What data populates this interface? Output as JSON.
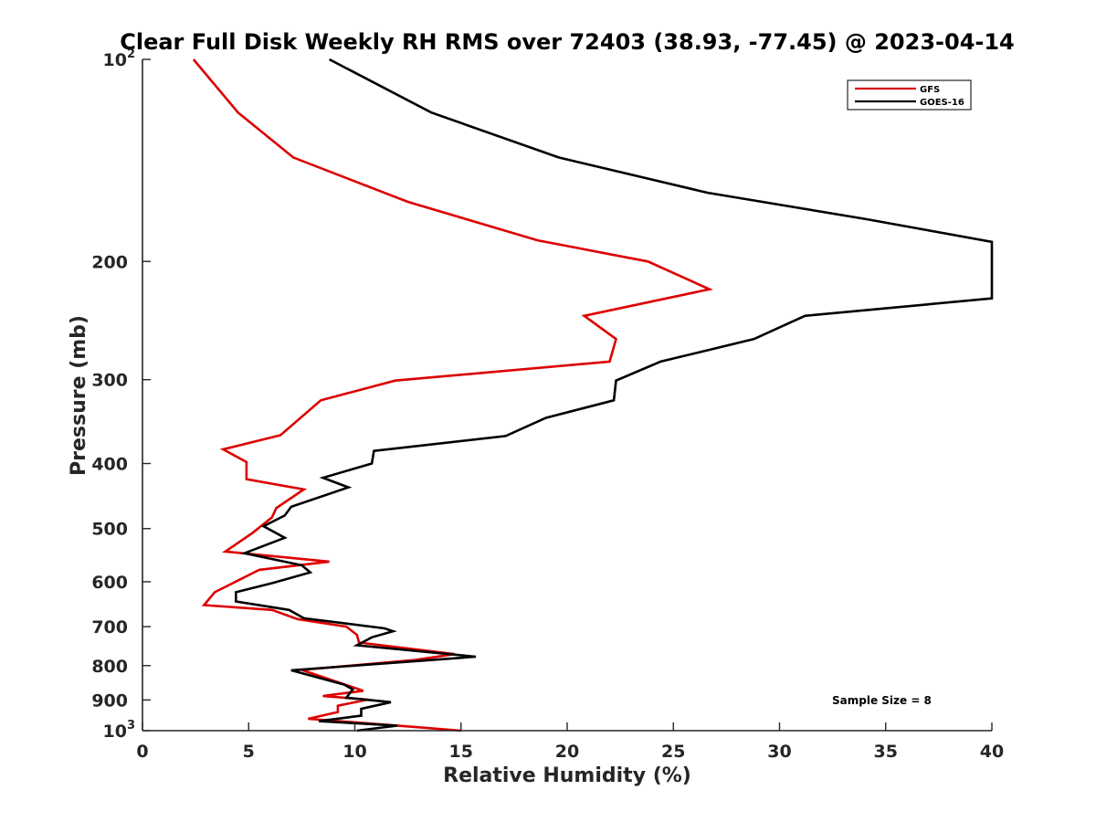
{
  "chart_data": {
    "type": "line",
    "title": "Clear Full Disk Weekly RH RMS over 72403 (38.93, -77.45) @ 2023-04-14",
    "xlabel": "Relative Humidity (%)",
    "ylabel": "Pressure (mb)",
    "xlim": [
      0,
      40
    ],
    "ylim": [
      1000,
      100
    ],
    "yscale": "log",
    "y_reversed": true,
    "grid": false,
    "legend_placement": "top-right",
    "x_ticks": [
      "0",
      "5",
      "10",
      "15",
      "20",
      "25",
      "30",
      "35",
      "40"
    ],
    "x_tick_values": [
      0,
      5,
      10,
      15,
      20,
      25,
      30,
      35,
      40
    ],
    "y_ticks": [
      {
        "value": 100,
        "base": "10",
        "exp": "2"
      },
      {
        "value": 200,
        "base": "200",
        "exp": ""
      },
      {
        "value": 300,
        "base": "300",
        "exp": ""
      },
      {
        "value": 400,
        "base": "400",
        "exp": ""
      },
      {
        "value": 500,
        "base": "500",
        "exp": ""
      },
      {
        "value": 600,
        "base": "600",
        "exp": ""
      },
      {
        "value": 700,
        "base": "700",
        "exp": ""
      },
      {
        "value": 800,
        "base": "800",
        "exp": ""
      },
      {
        "value": 900,
        "base": "900",
        "exp": ""
      },
      {
        "value": 1000,
        "base": "10",
        "exp": "3"
      }
    ],
    "annotation": "Sample Size = 8",
    "series": [
      {
        "name": "GFS",
        "color": "#dd0000",
        "points": [
          [
            2.4,
            100
          ],
          [
            4.5,
            120
          ],
          [
            7.1,
            140
          ],
          [
            12.5,
            163
          ],
          [
            18.6,
            186
          ],
          [
            23.8,
            200
          ],
          [
            26.7,
            220
          ],
          [
            20.8,
            241
          ],
          [
            22.3,
            261
          ],
          [
            22.0,
            282
          ],
          [
            11.9,
            301
          ],
          [
            8.4,
            322
          ],
          [
            6.5,
            363
          ],
          [
            3.8,
            381
          ],
          [
            4.9,
            398
          ],
          [
            4.9,
            422
          ],
          [
            7.6,
            437
          ],
          [
            6.3,
            466
          ],
          [
            6.1,
            481
          ],
          [
            5.2,
            507
          ],
          [
            3.9,
            541
          ],
          [
            8.8,
            560
          ],
          [
            5.5,
            576
          ],
          [
            3.4,
            622
          ],
          [
            2.9,
            650
          ],
          [
            6.1,
            661
          ],
          [
            7.3,
            682
          ],
          [
            9.6,
            700
          ],
          [
            10.1,
            720
          ],
          [
            10.2,
            739
          ],
          [
            14.7,
            769
          ],
          [
            12.8,
            785
          ],
          [
            7.5,
            812
          ],
          [
            10.4,
            872
          ],
          [
            8.5,
            888
          ],
          [
            10.6,
            899
          ],
          [
            9.2,
            918
          ],
          [
            9.2,
            938
          ],
          [
            7.8,
            960
          ],
          [
            12.4,
            985
          ],
          [
            15.0,
            1000
          ]
        ]
      },
      {
        "name": "GOES-16",
        "color": "#000000",
        "points": [
          [
            8.8,
            100
          ],
          [
            13.6,
            120
          ],
          [
            19.6,
            140
          ],
          [
            26.6,
            158
          ],
          [
            34.1,
            173
          ],
          [
            40.0,
            187
          ],
          [
            40.0,
            227
          ],
          [
            31.2,
            241
          ],
          [
            28.8,
            261
          ],
          [
            24.4,
            282
          ],
          [
            22.3,
            301
          ],
          [
            22.2,
            322
          ],
          [
            19.0,
            342
          ],
          [
            17.1,
            364
          ],
          [
            10.9,
            383
          ],
          [
            10.8,
            400
          ],
          [
            8.5,
            420
          ],
          [
            9.7,
            434
          ],
          [
            7.0,
            464
          ],
          [
            6.7,
            478
          ],
          [
            5.7,
            496
          ],
          [
            6.7,
            516
          ],
          [
            4.8,
            544
          ],
          [
            7.5,
            567
          ],
          [
            7.9,
            581
          ],
          [
            6.1,
            603
          ],
          [
            4.4,
            622
          ],
          [
            4.4,
            642
          ],
          [
            6.9,
            661
          ],
          [
            7.6,
            680
          ],
          [
            11.4,
            704
          ],
          [
            11.8,
            711
          ],
          [
            10.8,
            726
          ],
          [
            10.1,
            746
          ],
          [
            15.7,
            776
          ],
          [
            7.0,
            813
          ],
          [
            9.5,
            854
          ],
          [
            9.9,
            868
          ],
          [
            9.6,
            893
          ],
          [
            11.7,
            907
          ],
          [
            10.3,
            928
          ],
          [
            10.3,
            950
          ],
          [
            8.3,
            968
          ],
          [
            12.0,
            983
          ],
          [
            10.1,
            1000
          ]
        ]
      }
    ]
  }
}
